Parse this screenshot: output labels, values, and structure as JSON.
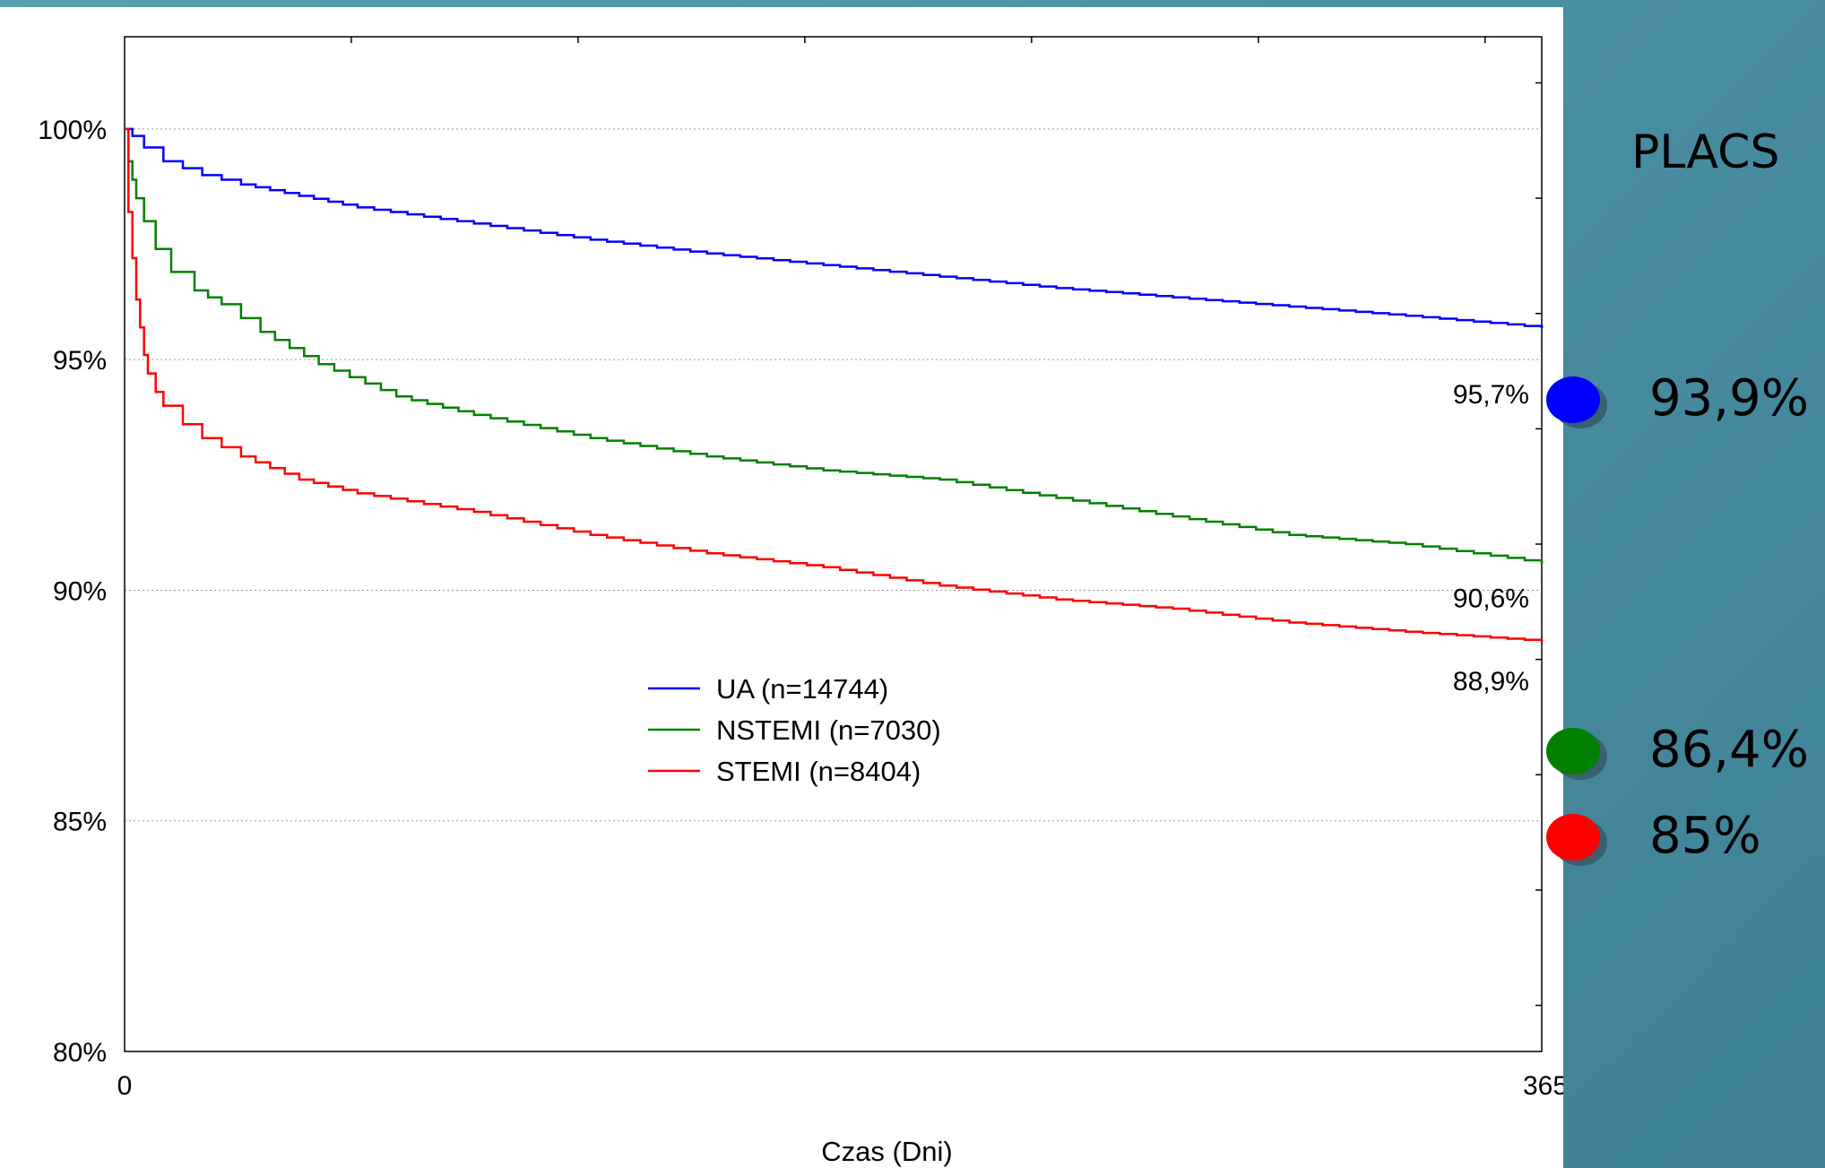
{
  "chart_data": {
    "type": "line",
    "xlabel": "Czas (Dni)",
    "ylabel": "",
    "xlim": [
      0,
      365
    ],
    "ylim": [
      80,
      102.0
    ],
    "x_tick_labels": [
      "0",
      "365"
    ],
    "y_ticks": [
      80,
      85,
      90,
      95,
      100
    ],
    "y_tick_labels": [
      "80%",
      "85%",
      "90%",
      "95%",
      "100%"
    ],
    "grid": true,
    "legend_position": "center",
    "series": [
      {
        "name": "UA (n=14744)",
        "color": "#0000ff",
        "x": [
          0,
          2,
          5,
          10,
          15,
          20,
          30,
          45,
          60,
          90,
          120,
          150,
          180,
          210,
          240,
          270,
          300,
          330,
          365
        ],
        "y": [
          100,
          99.85,
          99.6,
          99.3,
          99.15,
          99.0,
          98.8,
          98.55,
          98.3,
          97.95,
          97.6,
          97.3,
          97.05,
          96.8,
          96.55,
          96.35,
          96.15,
          95.95,
          95.7
        ]
      },
      {
        "name": "NSTEMI (n=7030)",
        "color": "#008000",
        "x": [
          0,
          1,
          2,
          3,
          5,
          8,
          12,
          18,
          25,
          35,
          50,
          70,
          90,
          120,
          150,
          180,
          210,
          240,
          270,
          300,
          330,
          365
        ],
        "y": [
          100,
          99.3,
          98.9,
          98.5,
          98.0,
          97.4,
          96.9,
          96.5,
          96.2,
          95.6,
          94.9,
          94.2,
          93.8,
          93.3,
          92.9,
          92.6,
          92.4,
          92.0,
          91.6,
          91.2,
          91.0,
          90.6
        ]
      },
      {
        "name": "STEMI (n=8404)",
        "color": "#ff0000",
        "x": [
          0,
          1,
          2,
          3,
          4,
          5,
          6,
          8,
          10,
          15,
          20,
          30,
          45,
          60,
          90,
          120,
          150,
          180,
          210,
          240,
          270,
          300,
          330,
          365
        ],
        "y": [
          100,
          98.2,
          97.2,
          96.3,
          95.7,
          95.1,
          94.7,
          94.3,
          94.0,
          93.6,
          93.3,
          92.9,
          92.4,
          92.1,
          91.7,
          91.2,
          90.8,
          90.5,
          90.1,
          89.8,
          89.6,
          89.3,
          89.1,
          88.9
        ]
      }
    ],
    "annotations": [
      {
        "text": "95,7%"
      },
      {
        "text": "90,6%"
      },
      {
        "text": "88,9%"
      }
    ]
  },
  "side_panel": {
    "title": "PLACS",
    "items": [
      {
        "value": "93,9%",
        "color": "#0000ff"
      },
      {
        "value": "86,4%",
        "color": "#008000"
      },
      {
        "value": "85%",
        "color": "#ff0000"
      }
    ]
  }
}
